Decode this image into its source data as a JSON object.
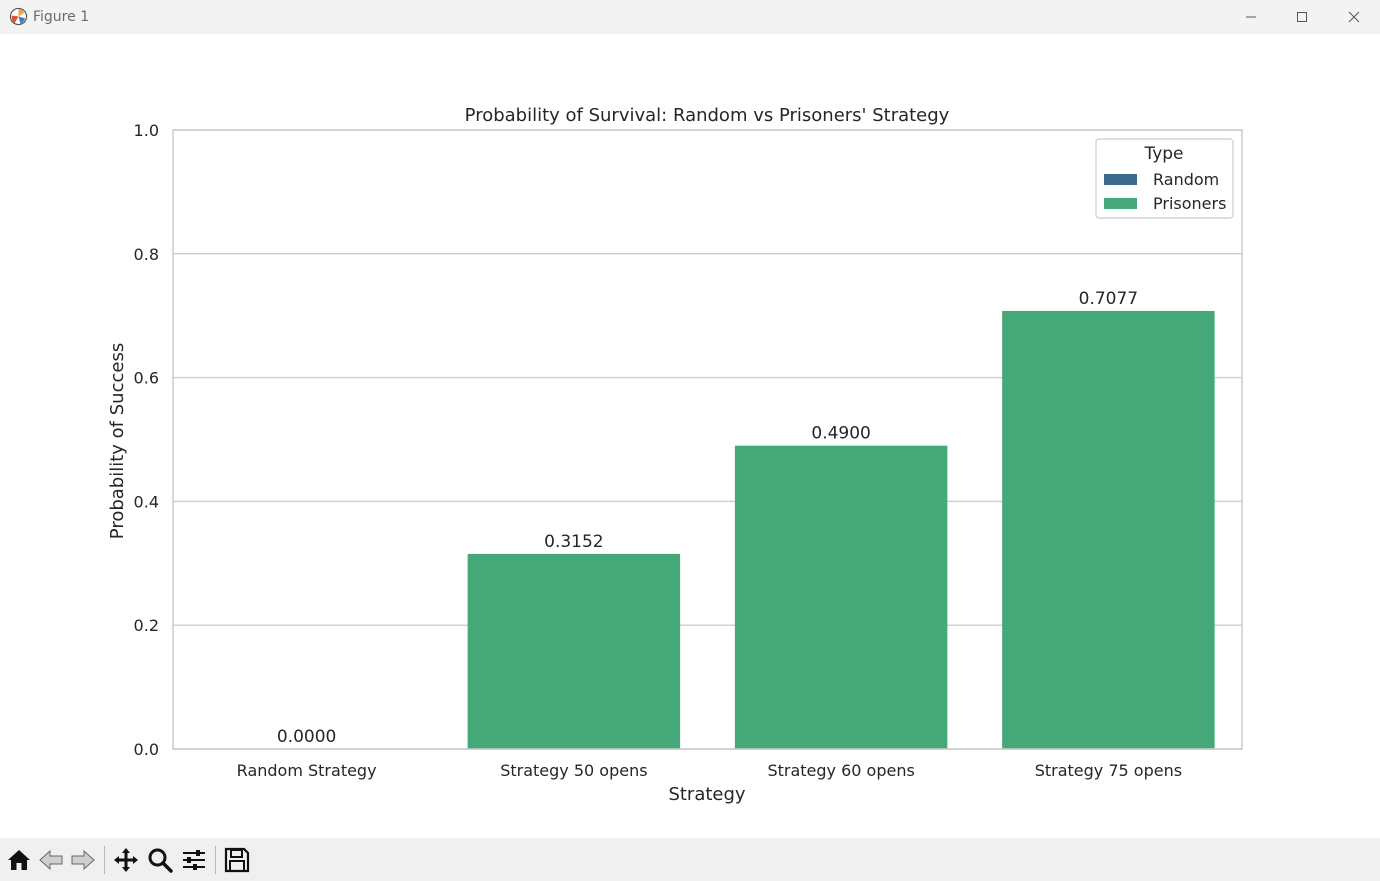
{
  "window": {
    "title": "Figure 1",
    "icon": "matplotlib-logo-icon",
    "controls": [
      "minimize-icon",
      "maximize-icon",
      "close-icon"
    ]
  },
  "toolbar": {
    "tools": [
      "home-icon",
      "back-arrow-icon",
      "forward-arrow-icon",
      "pan-move-icon",
      "zoom-magnifier-icon",
      "configure-subplots-icon",
      "save-disk-icon"
    ]
  },
  "chart_data": {
    "type": "bar",
    "title": "Probability of Survival: Random vs Prisoners' Strategy",
    "xlabel": "Strategy",
    "ylabel": "Probability of Success",
    "categories": [
      "Random Strategy",
      "Strategy 50 opens",
      "Strategy 60 opens",
      "Strategy 75 opens"
    ],
    "values": [
      0.0,
      0.3152,
      0.49,
      0.7077
    ],
    "value_labels": [
      "0.0000",
      "0.3152",
      "0.4900",
      "0.7077"
    ],
    "types": [
      "Random",
      "Prisoners",
      "Prisoners",
      "Prisoners"
    ],
    "ylim": [
      0,
      1.0
    ],
    "yticks": [
      0.0,
      0.2,
      0.4,
      0.6,
      0.8,
      1.0
    ],
    "ytick_labels": [
      "0.0",
      "0.2",
      "0.4",
      "0.6",
      "0.8",
      "1.0"
    ],
    "grid": "horizontal",
    "legend": {
      "title": "Type",
      "placement": "top-right",
      "entries": [
        {
          "name": "Random",
          "color": "#3b6a8a"
        },
        {
          "name": "Prisoners",
          "color": "#45a878"
        }
      ]
    },
    "colors": {
      "Random": "#3b6a8a",
      "Prisoners": "#45a878",
      "grid": "#d0d0d0",
      "frame": "#cccccc",
      "text": "#262626"
    }
  }
}
